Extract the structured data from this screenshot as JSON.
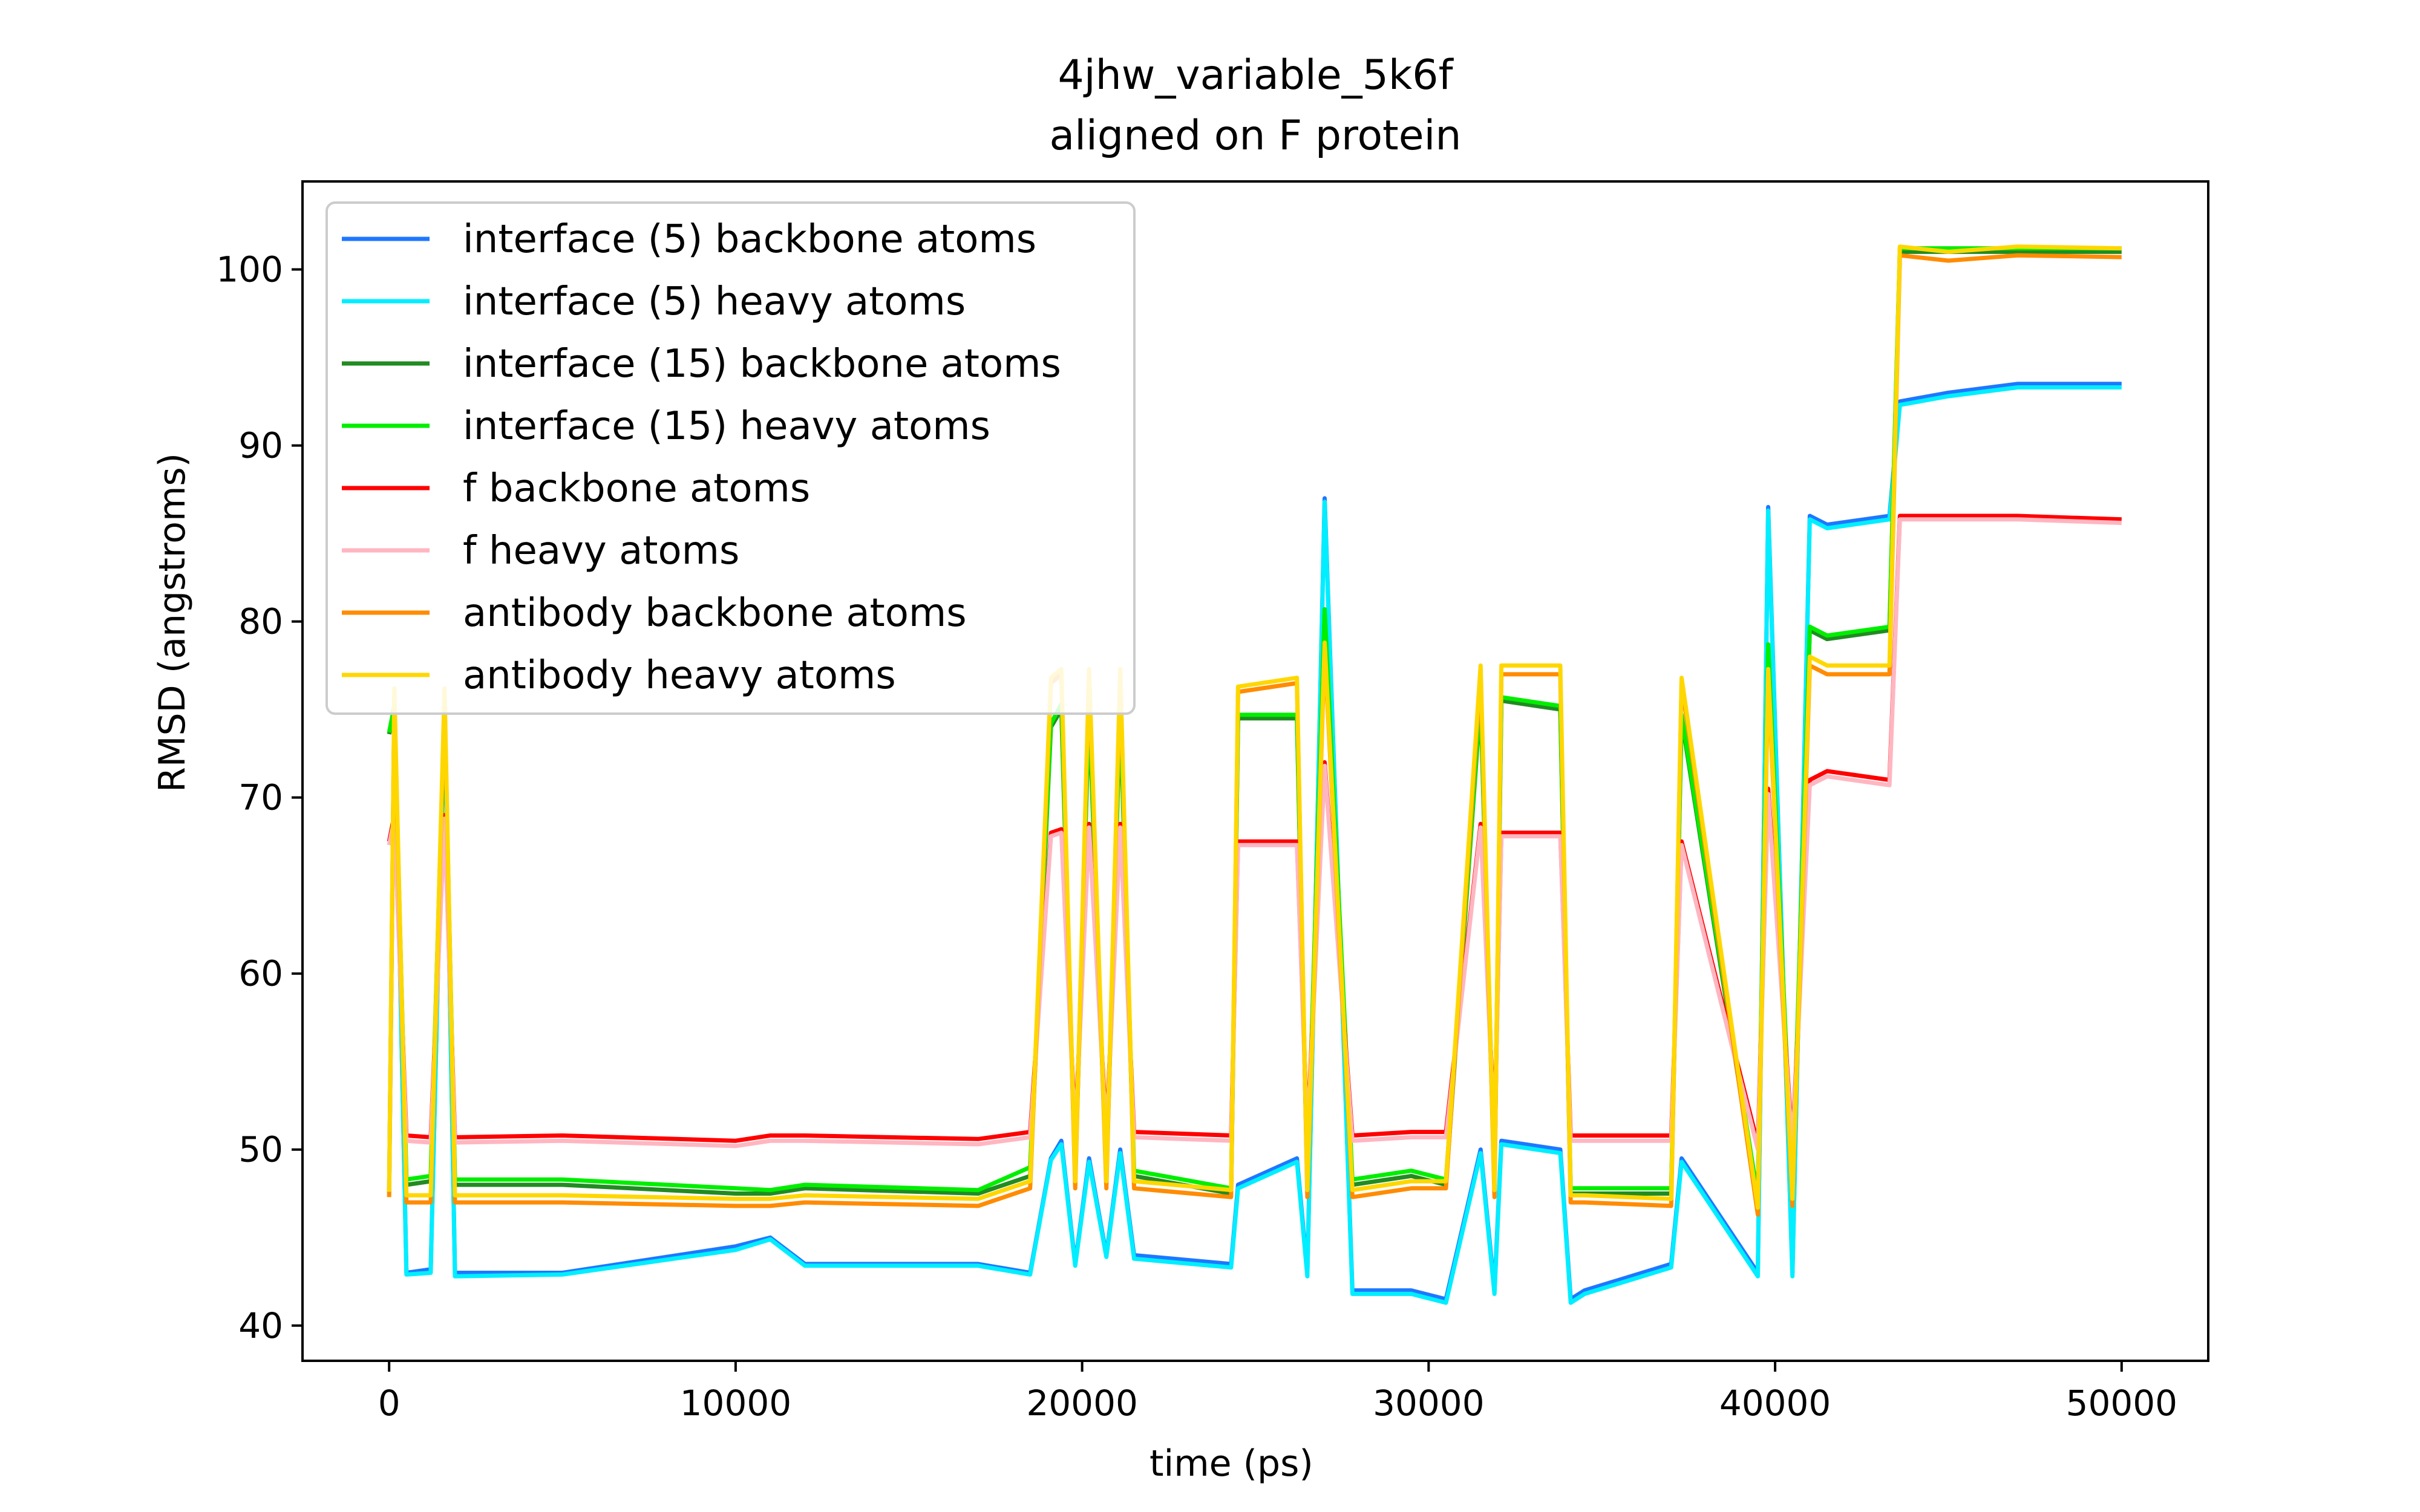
{
  "chart_data": {
    "type": "line",
    "title": "4jhw_variable_5k6f",
    "subtitle": "aligned on F protein",
    "xlabel": "time (ps)",
    "ylabel": "RMSD (angstroms)",
    "xlim": [
      -2500,
      52500
    ],
    "ylim": [
      38,
      105
    ],
    "xticks": [
      0,
      10000,
      20000,
      30000,
      40000,
      50000
    ],
    "yticks": [
      40,
      50,
      60,
      70,
      80,
      90,
      100
    ],
    "grid": false,
    "legend_position": "upper-left",
    "x": [
      0,
      150,
      500,
      1200,
      1600,
      1900,
      5000,
      10000,
      11000,
      12000,
      17000,
      18500,
      19100,
      19400,
      19800,
      20200,
      20700,
      21100,
      21500,
      24300,
      24500,
      26200,
      26500,
      27000,
      27800,
      29500,
      30500,
      31500,
      31900,
      32100,
      33800,
      34100,
      34500,
      37000,
      37300,
      39500,
      39800,
      40500,
      41000,
      41500,
      43300,
      43600,
      45000,
      47000,
      50000
    ],
    "series": [
      {
        "name": "interface (5) backbone atoms",
        "color": "#1f77ff",
        "values": [
          47.6,
          75.5,
          43.0,
          43.2,
          75.5,
          43.0,
          43.0,
          44.5,
          45.0,
          43.5,
          43.5,
          43.0,
          49.5,
          50.5,
          43.5,
          49.5,
          44.0,
          50.0,
          44.0,
          43.5,
          48.0,
          49.5,
          43.0,
          87.0,
          42.0,
          42.0,
          41.5,
          50.0,
          42.0,
          50.5,
          50.0,
          41.5,
          42.0,
          43.5,
          49.5,
          43.0,
          86.5,
          43.0,
          86.0,
          85.5,
          86.0,
          92.5,
          93.0,
          93.5,
          93.5
        ]
      },
      {
        "name": "interface (5) heavy atoms",
        "color": "#00eeff",
        "values": [
          47.5,
          75.3,
          42.9,
          43.0,
          75.3,
          42.8,
          42.9,
          44.3,
          44.9,
          43.4,
          43.4,
          42.9,
          49.4,
          50.3,
          43.4,
          49.3,
          43.9,
          49.8,
          43.8,
          43.3,
          47.8,
          49.3,
          42.8,
          86.8,
          41.8,
          41.8,
          41.3,
          49.8,
          41.8,
          50.3,
          49.8,
          41.3,
          41.8,
          43.3,
          49.3,
          42.8,
          86.3,
          42.8,
          85.8,
          85.3,
          85.8,
          92.3,
          92.8,
          93.3,
          93.3
        ]
      },
      {
        "name": "interface (15) backbone atoms",
        "color": "#228b22",
        "values": [
          73.6,
          75.0,
          48.0,
          48.2,
          75.0,
          48.0,
          48.0,
          47.5,
          47.5,
          47.8,
          47.5,
          48.5,
          74.0,
          75.0,
          48.5,
          75.0,
          48.5,
          75.0,
          48.5,
          47.5,
          74.5,
          74.5,
          48.0,
          80.5,
          48.0,
          48.5,
          48.0,
          75.5,
          48.0,
          75.5,
          75.0,
          47.5,
          47.5,
          47.5,
          74.5,
          47.0,
          78.5,
          47.5,
          79.5,
          79.0,
          79.5,
          101.0,
          101.0,
          101.0,
          101.0
        ]
      },
      {
        "name": "interface (15) heavy atoms",
        "color": "#00ee00",
        "values": [
          73.7,
          75.2,
          48.3,
          48.5,
          75.2,
          48.3,
          48.3,
          47.8,
          47.7,
          48.0,
          47.7,
          49.0,
          74.2,
          75.3,
          48.8,
          75.3,
          48.8,
          75.3,
          48.8,
          47.8,
          74.7,
          74.7,
          48.3,
          80.7,
          48.3,
          48.8,
          48.3,
          75.7,
          48.3,
          75.7,
          75.2,
          47.8,
          47.8,
          47.8,
          74.7,
          47.3,
          78.7,
          47.8,
          79.7,
          79.2,
          79.7,
          101.2,
          101.2,
          101.2,
          101.2
        ]
      },
      {
        "name": "f backbone atoms",
        "color": "#ff0000",
        "values": [
          67.5,
          69.0,
          50.8,
          50.7,
          69.0,
          50.7,
          50.8,
          50.5,
          50.8,
          50.8,
          50.6,
          51.0,
          68.0,
          68.2,
          51.0,
          68.5,
          51.0,
          68.5,
          51.0,
          50.8,
          67.5,
          67.5,
          50.8,
          72.0,
          50.8,
          51.0,
          51.0,
          68.5,
          51.0,
          68.0,
          68.0,
          50.8,
          50.8,
          50.8,
          67.5,
          50.3,
          70.5,
          50.3,
          71.0,
          71.5,
          71.0,
          86.0,
          86.0,
          86.0,
          85.8
        ]
      },
      {
        "name": "f heavy atoms",
        "color": "#ffb6c1",
        "values": [
          67.3,
          68.8,
          50.5,
          50.4,
          68.8,
          50.4,
          50.5,
          50.2,
          50.5,
          50.5,
          50.3,
          50.7,
          67.8,
          68.0,
          50.7,
          68.3,
          50.7,
          68.3,
          50.7,
          50.5,
          67.3,
          67.3,
          50.5,
          71.8,
          50.5,
          50.7,
          50.7,
          68.3,
          50.7,
          67.8,
          67.8,
          50.5,
          50.5,
          50.5,
          67.3,
          50.0,
          70.2,
          50.0,
          70.7,
          71.2,
          70.7,
          85.8,
          85.8,
          85.8,
          85.6
        ]
      },
      {
        "name": "antibody backbone atoms",
        "color": "#ff8c00",
        "values": [
          47.3,
          75.8,
          47.0,
          47.0,
          75.8,
          47.0,
          47.0,
          46.8,
          46.8,
          47.0,
          46.8,
          47.8,
          76.5,
          77.0,
          47.8,
          77.0,
          47.8,
          77.0,
          47.8,
          47.3,
          76.0,
          76.5,
          47.3,
          78.5,
          47.3,
          47.8,
          47.8,
          77.0,
          47.3,
          77.0,
          77.0,
          47.0,
          47.0,
          46.8,
          76.5,
          46.3,
          77.0,
          46.8,
          77.5,
          77.0,
          77.0,
          100.8,
          100.5,
          100.8,
          100.7
        ]
      },
      {
        "name": "antibody heavy atoms",
        "color": "#ffd700",
        "values": [
          47.6,
          76.2,
          47.4,
          47.4,
          76.2,
          47.4,
          47.4,
          47.2,
          47.2,
          47.4,
          47.2,
          48.2,
          76.8,
          77.3,
          48.2,
          77.3,
          48.2,
          77.3,
          48.2,
          47.7,
          76.3,
          76.8,
          47.7,
          78.8,
          47.7,
          48.2,
          48.2,
          77.5,
          47.7,
          77.5,
          77.5,
          47.4,
          47.4,
          47.2,
          76.8,
          46.7,
          77.3,
          47.2,
          78.0,
          77.5,
          77.5,
          101.3,
          101.0,
          101.3,
          101.2
        ]
      }
    ]
  }
}
